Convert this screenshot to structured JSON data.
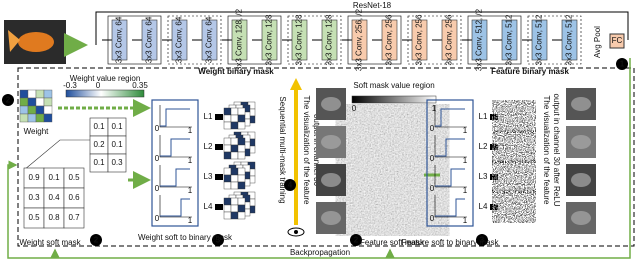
{
  "resnet": {
    "title": "ResNet-18",
    "layers": [
      "3x3 Conv, 64",
      "3x3 Conv, 64",
      "3x3 Conv, 64",
      "3x3 Conv, 64",
      "3x3 Conv, 128, /2",
      "3x3 Conv, 128",
      "3x3 Conv, 128",
      "3x3 Conv, 128",
      "3x3 Conv, 256, /2",
      "3x3 Conv, 256",
      "3x3 Conv, 256",
      "3x3 Conv, 256",
      "3x3 Conv, 512, /2",
      "3x3 Conv, 512",
      "3x3 Conv, 512",
      "3x3 Conv, 512"
    ],
    "pool": "Avg Pool",
    "fc": "FC"
  },
  "badges": [
    "1",
    "2",
    "2",
    "3",
    "4",
    "2",
    "3"
  ],
  "weight": {
    "label": "Weight",
    "region_title": "Weight value region",
    "region_ticks": [
      "-0.3",
      "0",
      "0.35"
    ]
  },
  "soft_mask": {
    "label": "Weight soft mask",
    "back_rows": [
      [
        "0.1",
        "0.1"
      ],
      [
        "0.2",
        "0.1"
      ],
      [
        "0.1",
        "0.3"
      ]
    ],
    "front_rows": [
      [
        "0.9",
        "0.1",
        "0.5"
      ],
      [
        "0.3",
        "0.4",
        "0.6"
      ],
      [
        "0.5",
        "0.8",
        "0.7"
      ]
    ]
  },
  "plot_ticks": [
    "0",
    "1"
  ],
  "mask_layers": [
    "L1",
    "L2",
    "L3",
    "L4"
  ],
  "weight_binary": {
    "title": "Weight binary mask",
    "caption": "Weight soft to binary mask"
  },
  "training": "Sequential multi-mask training",
  "vis1": [
    "The visualization of the feature",
    "output in channel 30"
  ],
  "feature_soft": {
    "region_title": "Soft mask value region",
    "ticks": [
      "0",
      "1"
    ],
    "caption": "Feature soft mask"
  },
  "feature_binary": {
    "title": "Feature binary mask",
    "caption": "Feature soft to binary mask"
  },
  "vis2": [
    "The visualization of the feature",
    "output in channel 30 after ReLU"
  ],
  "backprop": "Backpropagation"
}
